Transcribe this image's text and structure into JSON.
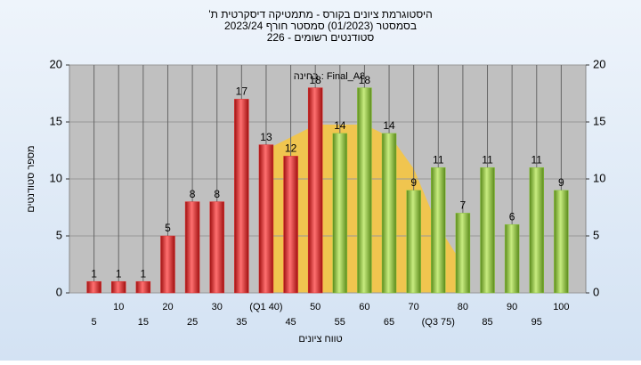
{
  "chart_data": {
    "type": "bar",
    "title": [
      "'היסטוגרמת ציונים בקורס - מתמטיקה דיסקרטית ת",
      "בסמסטר (01/2023) סמסטר חורף 2023/24",
      "סטודנטים רשומים - 226"
    ],
    "annotation": "בחינה : Final_A8",
    "y_label": "מספר סטודנטים",
    "x_label": "טווח ציונים",
    "categories": [
      "5",
      "10",
      "15",
      "20",
      "25",
      "30",
      "35",
      "(Q1 40)",
      "45",
      "50",
      "55",
      "60",
      "65",
      "70",
      "(Q3 75)",
      "80",
      "85",
      "90",
      "95",
      "100"
    ],
    "values": [
      1,
      1,
      1,
      5,
      8,
      8,
      17,
      13,
      12,
      18,
      14,
      18,
      14,
      9,
      11,
      7,
      11,
      6,
      11,
      9
    ],
    "bar_colors": [
      "#e03030",
      "#e03030",
      "#e03030",
      "#e03030",
      "#e03030",
      "#e03030",
      "#e03030",
      "#e03030",
      "#e03030",
      "#e03030",
      "#8cc63f",
      "#8cc63f",
      "#8cc63f",
      "#8cc63f",
      "#8cc63f",
      "#8cc63f",
      "#8cc63f",
      "#8cc63f",
      "#8cc63f",
      "#8cc63f"
    ],
    "ylim": [
      0,
      20
    ],
    "yticks": [
      0,
      5,
      10,
      15,
      20
    ],
    "y2lim": [
      0,
      20
    ],
    "y2ticks": [
      0,
      5,
      10,
      15,
      20
    ],
    "grid": true
  }
}
